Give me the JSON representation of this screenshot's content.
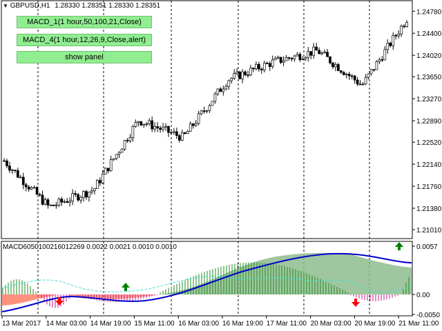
{
  "header": {
    "symbol": "GBPUSD,H1",
    "ohlc": "1.28330 1.28351 1.28330 1.28351"
  },
  "buttons": [
    {
      "label": "MACD_1(1 hour,50,100,21,Close)"
    },
    {
      "label": "MACD_4(1 hour,12,26,9,Close,alert)"
    },
    {
      "label": "show panel"
    }
  ],
  "price_axis": [
    "1.24780",
    "1.24400",
    "1.24020",
    "1.23650",
    "1.23270",
    "1.22890",
    "1.22520",
    "1.22140",
    "1.21760",
    "1.21380",
    "1.21010"
  ],
  "indicator": {
    "label": "MACD6050100216012269 0.0022 0.0021 0.0010 0.0010",
    "axis": [
      "0.0057",
      "0.00",
      "-0.0050"
    ]
  },
  "time_axis": [
    "13 Mar 2017",
    "14 Mar 03:00",
    "14 Mar 19:00",
    "15 Mar 11:00",
    "16 Mar 03:00",
    "16 Mar 19:00",
    "17 Mar 11:00",
    "20 Mar 03:00",
    "20 Mar 19:00",
    "21 Mar 11:00"
  ],
  "colors": {
    "bull_candle": "#ffffff",
    "bear_candle": "#000000",
    "signal_up": "#008000",
    "signal_down": "#ff0000",
    "macd_line": "#0000cd",
    "histogram_positive": "#228b22",
    "histogram_negative": "#ff6347",
    "area_fill": "#8fbc8f"
  },
  "chart_data": {
    "type": "line",
    "x": [
      "13 Mar 2017",
      "14 Mar 03:00",
      "14 Mar 19:00",
      "15 Mar 11:00",
      "16 Mar 03:00",
      "16 Mar 19:00",
      "17 Mar 11:00",
      "20 Mar 03:00",
      "20 Mar 19:00",
      "21 Mar 11:00"
    ],
    "series": [
      {
        "values": [
          1.222,
          1.214,
          1.217,
          1.229,
          1.226,
          1.236,
          1.239,
          1.241,
          1.235,
          1.2465
        ]
      }
    ],
    "ylim": [
      1.2088,
      1.2495
    ]
  }
}
